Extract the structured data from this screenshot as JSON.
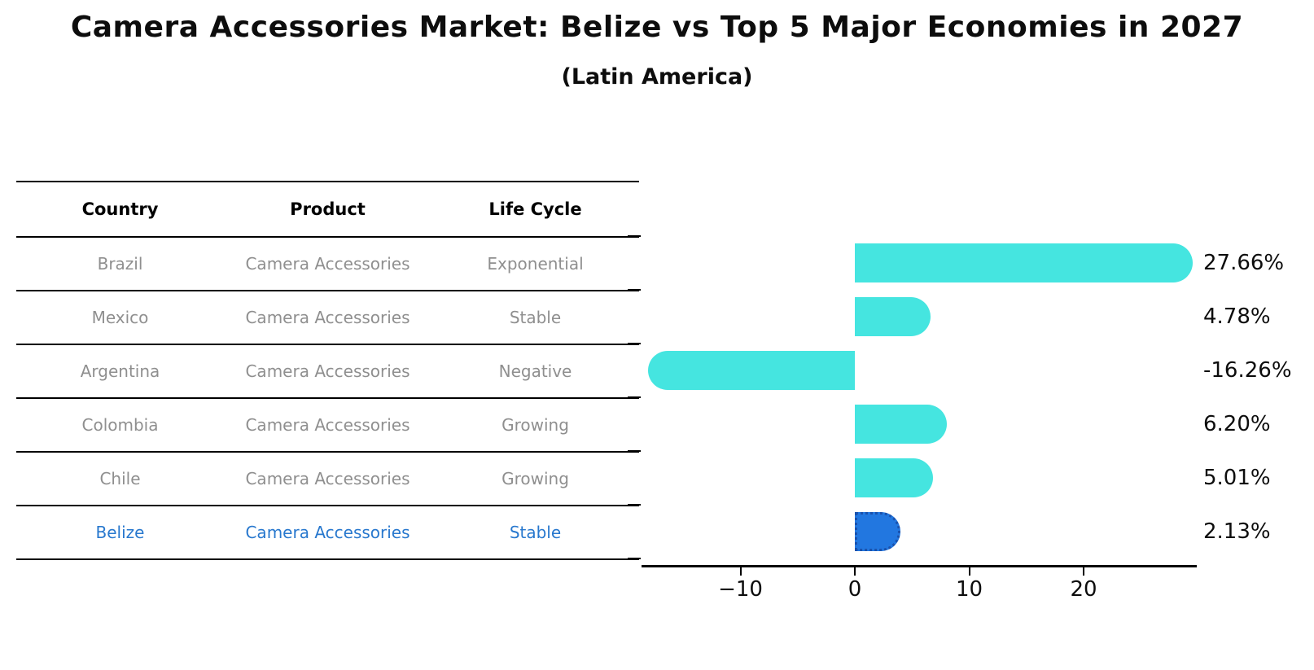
{
  "title": "Camera Accessories Market: Belize vs Top 5 Major Economies in 2027",
  "subtitle": "(Latin America)",
  "table": {
    "headers": [
      "Country",
      "Product",
      "Life Cycle"
    ],
    "rows": [
      {
        "country": "Brazil",
        "product": "Camera Accessories",
        "life_cycle": "Exponential",
        "highlight": false
      },
      {
        "country": "Mexico",
        "product": "Camera Accessories",
        "life_cycle": "Stable",
        "highlight": false
      },
      {
        "country": "Argentina",
        "product": "Camera Accessories",
        "life_cycle": "Negative",
        "highlight": false
      },
      {
        "country": "Colombia",
        "product": "Camera Accessories",
        "life_cycle": "Growing",
        "highlight": false
      },
      {
        "country": "Chile",
        "product": "Camera Accessories",
        "life_cycle": "Growing",
        "highlight": false
      },
      {
        "country": "Belize",
        "product": "Camera Accessories",
        "life_cycle": "Stable",
        "highlight": true
      }
    ]
  },
  "chart_data": {
    "type": "bar",
    "orientation": "horizontal",
    "title": "Camera Accessories Market: Belize vs Top 5 Major Economies in 2027 (Latin America)",
    "categories": [
      "Brazil",
      "Mexico",
      "Argentina",
      "Colombia",
      "Chile",
      "Belize"
    ],
    "values": [
      27.66,
      4.78,
      -16.26,
      6.2,
      5.01,
      2.13
    ],
    "value_labels": [
      "27.66%",
      "4.78%",
      "-16.26%",
      "6.20%",
      "5.01%",
      "2.13%"
    ],
    "unit": "%",
    "xlim": [
      -18.6,
      29.9
    ],
    "xticks": [
      -10,
      0,
      10,
      20
    ],
    "xtick_labels": [
      "−10",
      "0",
      "10",
      "20"
    ],
    "grid": false,
    "legend": false,
    "bar_color": "#45E5E0",
    "highlight_color": "#2277E0",
    "highlight_border_color": "#1A52AD",
    "highlight_index": 5
  },
  "colors": {
    "bar_cyan": "#45E5E0",
    "bar_blue": "#2277E0",
    "highlight_row_text": "#2878CE",
    "gray_row_text": "#8f8f8f",
    "text_black": "#0d0d0d"
  }
}
